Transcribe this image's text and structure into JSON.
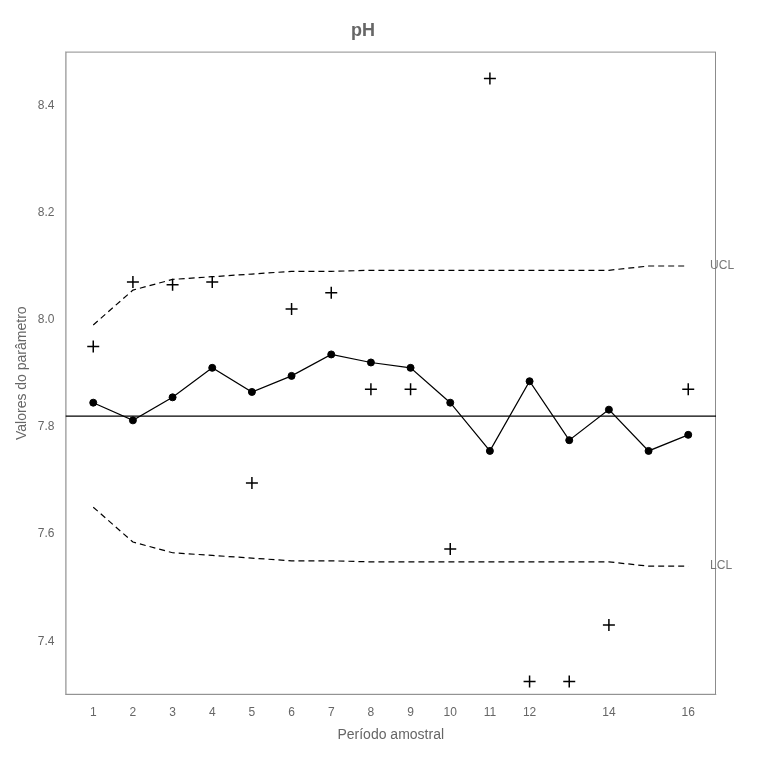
{
  "chart_data": {
    "type": "line",
    "title": "pH",
    "xlabel": "Período amostral",
    "ylabel": "Valores do parâmetro",
    "xlim": [
      0.3,
      16.7
    ],
    "xticks": [
      1,
      2,
      3,
      4,
      5,
      6,
      7,
      8,
      9,
      10,
      11,
      12,
      14,
      16
    ],
    "ylim": [
      7.3,
      8.5
    ],
    "yticks": [
      7.4,
      7.6,
      7.8,
      {
        "value": 8.0,
        "label": "8.0"
      },
      8.2,
      8.4
    ],
    "grid": false,
    "series": [
      {
        "type": "scatter",
        "marker": "plus",
        "line_style": "none",
        "color": "#000000",
        "x": [
          1,
          2,
          3,
          4,
          5,
          6,
          7,
          8,
          9,
          10,
          11,
          12,
          13,
          14,
          16
        ],
        "values": [
          7.95,
          8.07,
          8.065,
          8.07,
          7.695,
          8.02,
          8.05,
          7.87,
          7.87,
          7.572,
          8.45,
          7.325,
          7.325,
          7.43,
          7.87
        ]
      },
      {
        "type": "line",
        "marker": "circle",
        "line_style": "solid",
        "color": "#000000",
        "x": [
          1,
          2,
          3,
          4,
          5,
          6,
          7,
          8,
          9,
          10,
          11,
          12,
          13,
          14,
          15,
          16
        ],
        "values": [
          7.845,
          7.812,
          7.855,
          7.91,
          7.865,
          7.895,
          7.935,
          7.92,
          7.91,
          7.845,
          7.755,
          7.885,
          7.775,
          7.832,
          7.755,
          7.785
        ]
      },
      {
        "type": "line",
        "marker": "none",
        "line_style": "dashed",
        "color": "#000000",
        "x": [
          1,
          2,
          3,
          4,
          5,
          6,
          7,
          8,
          9,
          10,
          11,
          12,
          13,
          14,
          15,
          16
        ],
        "values": [
          7.99,
          8.055,
          8.075,
          8.08,
          8.085,
          8.09,
          8.09,
          8.092,
          8.092,
          8.092,
          8.092,
          8.092,
          8.092,
          8.092,
          8.1,
          8.1
        ]
      },
      {
        "type": "line",
        "marker": "none",
        "line_style": "dashed",
        "color": "#000000",
        "x": [
          1,
          2,
          3,
          4,
          5,
          6,
          7,
          8,
          9,
          10,
          11,
          12,
          13,
          14,
          15,
          16
        ],
        "values": [
          7.65,
          7.585,
          7.565,
          7.56,
          7.555,
          7.55,
          7.55,
          7.548,
          7.548,
          7.548,
          7.548,
          7.548,
          7.548,
          7.548,
          7.54,
          7.54
        ]
      }
    ],
    "center_line": {
      "value": 7.82,
      "color": "#000000",
      "line_style": "solid"
    },
    "annotations": [
      {
        "text": "UCL",
        "x": 16.55,
        "y": 8.1,
        "color": "#777777"
      },
      {
        "text": "LCL",
        "x": 16.55,
        "y": 7.54,
        "color": "#777777"
      }
    ]
  }
}
